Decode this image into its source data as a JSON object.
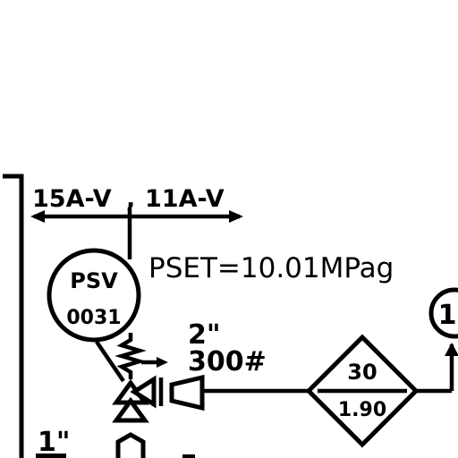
{
  "drawing": {
    "line_labels": {
      "left": "15A-V",
      "right": "11A-V"
    },
    "psv": {
      "tag": "PSV",
      "number": "0031",
      "set_pressure": "PSET=10.01MPag"
    },
    "outlet": {
      "size": "2\"",
      "rating": "300#"
    },
    "inlet": {
      "size": "1\""
    },
    "diamond_symbol": {
      "top": "30",
      "bottom": "1.90"
    },
    "instrument_bubble": {
      "text": "1"
    }
  },
  "colors": {
    "ink": "#000000",
    "paper": "#ffffff"
  }
}
